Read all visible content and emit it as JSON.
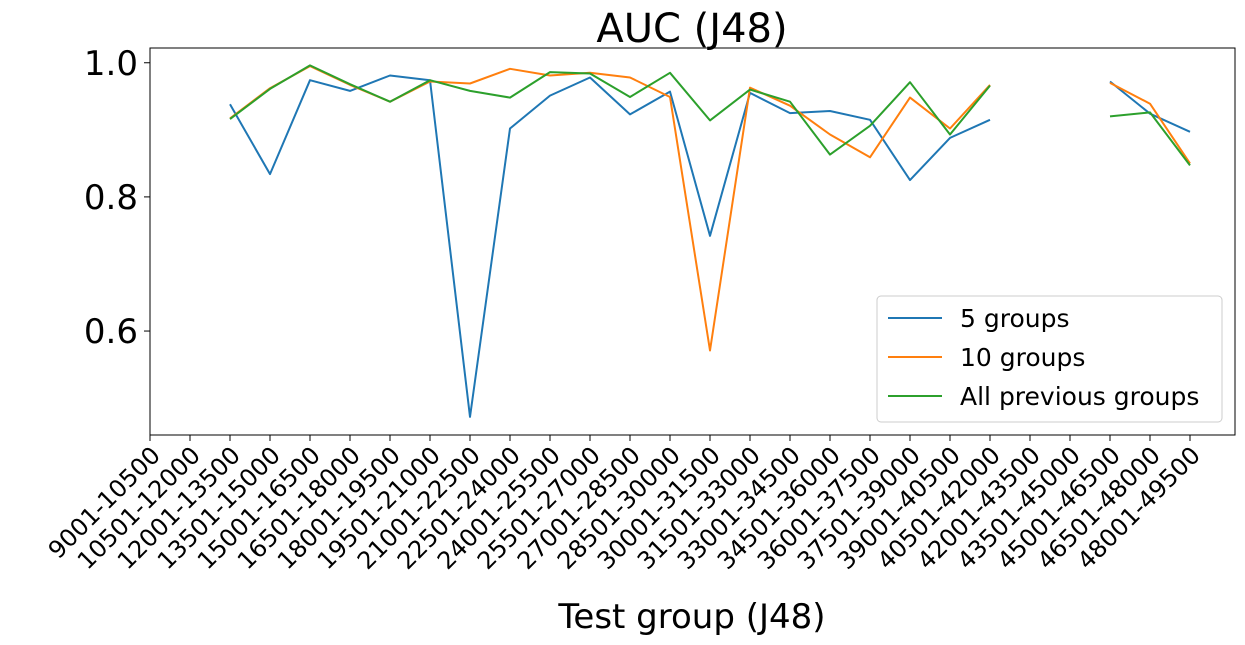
{
  "chart_data": {
    "type": "line",
    "title": "AUC (J48)",
    "xlabel": "Test group (J48)",
    "ylabel": "",
    "categories": [
      "9001-10500",
      "10501-12000",
      "12001-13500",
      "13501-15000",
      "15001-16500",
      "16501-18000",
      "18001-19500",
      "19501-21000",
      "21001-22500",
      "22501-24000",
      "24001-25500",
      "25501-27000",
      "27001-28500",
      "28501-30000",
      "30001-31500",
      "31501-33000",
      "33001-34500",
      "34501-36000",
      "36001-37500",
      "37501-39000",
      "39001-40500",
      "40501-42000",
      "42001-43500",
      "43501-45000",
      "45001-46500",
      "46501-48000",
      "48001-49500"
    ],
    "ylim": [
      0.445,
      1.022
    ],
    "yticks": [
      0.6,
      0.8,
      1.0
    ],
    "ytick_labels": [
      "0.6",
      "0.8",
      "1.0"
    ],
    "grid": false,
    "legend_position": "lower-right",
    "series": [
      {
        "name": "5 groups",
        "color": "#1f77b4",
        "values": [
          null,
          null,
          0.938,
          0.834,
          0.974,
          0.958,
          0.981,
          0.974,
          0.472,
          0.902,
          0.951,
          0.978,
          0.923,
          0.957,
          0.742,
          0.955,
          0.925,
          0.928,
          0.915,
          0.825,
          0.888,
          0.915,
          null,
          null,
          0.972,
          0.924,
          0.897
        ]
      },
      {
        "name": "10 groups",
        "color": "#ff7f0e",
        "values": [
          null,
          null,
          0.917,
          0.962,
          0.995,
          0.967,
          0.942,
          0.972,
          0.969,
          0.991,
          0.981,
          0.985,
          0.978,
          0.949,
          0.571,
          0.963,
          0.936,
          0.893,
          0.859,
          0.948,
          0.902,
          0.967,
          null,
          null,
          0.97,
          0.939,
          0.85
        ]
      },
      {
        "name": "All previous groups",
        "color": "#2ca02c",
        "values": [
          null,
          null,
          0.916,
          0.961,
          0.996,
          0.968,
          0.942,
          0.974,
          0.958,
          0.948,
          0.986,
          0.984,
          0.949,
          0.985,
          0.914,
          0.96,
          0.942,
          0.863,
          0.906,
          0.971,
          0.893,
          0.966,
          null,
          null,
          0.92,
          0.926,
          0.847
        ]
      }
    ]
  }
}
